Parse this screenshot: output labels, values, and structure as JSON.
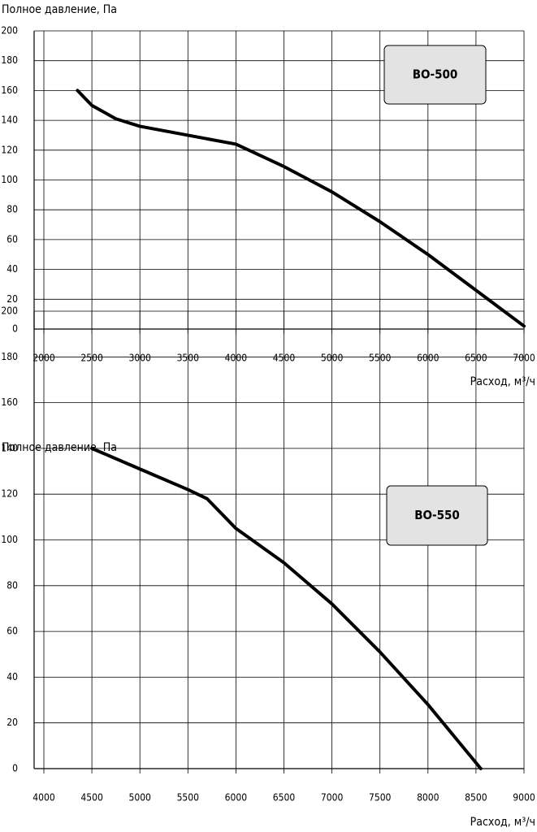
{
  "chart_data": [
    {
      "type": "line",
      "ylabel": "Полное давление, Па",
      "xlabel": "Расход, м³/ч",
      "annotation": "ВО-500",
      "x": [
        2350,
        2500,
        2750,
        3000,
        3500,
        4000,
        4500,
        5000,
        5500,
        6000,
        6500,
        7000
      ],
      "series": [
        {
          "color": "#000000",
          "values": [
            160,
            150,
            141,
            136,
            130,
            124,
            109,
            92,
            72,
            50,
            26,
            2
          ]
        }
      ],
      "xlim": [
        2000,
        7000
      ],
      "xticks": [
        2000,
        2500,
        3000,
        3500,
        4000,
        4500,
        5000,
        5500,
        6000,
        6500,
        7000
      ],
      "ylim": [
        0,
        200
      ],
      "yticks": [
        0,
        20,
        40,
        60,
        80,
        100,
        120,
        140,
        160,
        180,
        200
      ],
      "grid": true
    },
    {
      "type": "line",
      "ylabel": "Полное давление, Па",
      "xlabel": "Расход, м³/ч",
      "annotation": "ВО-550",
      "x": [
        4500,
        5000,
        5500,
        5700,
        6000,
        6500,
        7000,
        7500,
        8000,
        8550
      ],
      "series": [
        {
          "color": "#000000",
          "values": [
            140,
            131,
            122,
            118,
            105,
            90,
            72,
            51,
            28,
            0
          ]
        }
      ],
      "xlim": [
        4000,
        9000
      ],
      "xticks": [
        4000,
        4500,
        5000,
        5500,
        6000,
        6500,
        7000,
        7500,
        8000,
        8500,
        9000
      ],
      "ylim": [
        0,
        200
      ],
      "yticks": [
        0,
        20,
        40,
        60,
        80,
        100,
        120,
        140,
        160,
        180,
        200
      ],
      "grid": true
    }
  ]
}
